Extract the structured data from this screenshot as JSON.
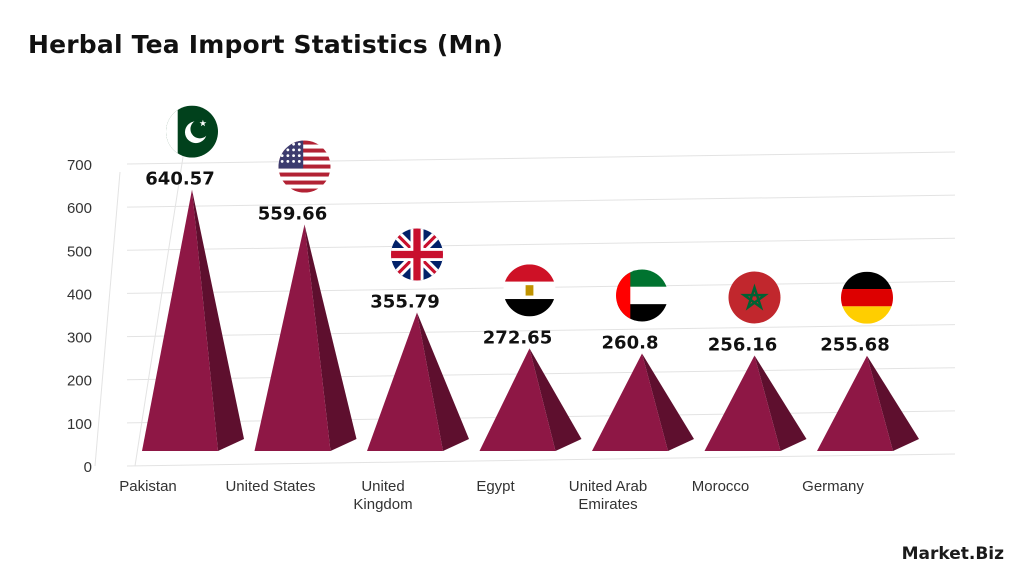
{
  "chart_data": {
    "type": "bar",
    "title": "Herbal Tea Import Statistics (Mn)",
    "xlabel": "",
    "ylabel": "",
    "ylim": [
      0,
      700
    ],
    "yticks": [
      0,
      100,
      200,
      300,
      400,
      500,
      600,
      700
    ],
    "grid": true,
    "categories": [
      {
        "label_lines": [
          "Pakistan"
        ],
        "flag": "pakistan-flag-icon"
      },
      {
        "label_lines": [
          "United States"
        ],
        "flag": "usa-flag-icon"
      },
      {
        "label_lines": [
          "United",
          "Kingdom"
        ],
        "flag": "uk-flag-icon"
      },
      {
        "label_lines": [
          "Egypt"
        ],
        "flag": "egypt-flag-icon"
      },
      {
        "label_lines": [
          "United Arab",
          "Emirates"
        ],
        "flag": "uae-flag-icon"
      },
      {
        "label_lines": [
          "Morocco"
        ],
        "flag": "morocco-flag-icon"
      },
      {
        "label_lines": [
          "Germany"
        ],
        "flag": "germany-flag-icon"
      }
    ],
    "values": [
      640.57,
      559.66,
      355.79,
      272.65,
      260.8,
      256.16,
      255.68
    ],
    "value_labels": [
      "640.57",
      "559.66",
      "355.79",
      "272.65",
      "260.8",
      "256.16",
      "255.68"
    ],
    "colors": {
      "bar_front": "#8e1745",
      "bar_side": "#5e0f2e",
      "grid": "#e3e3e3",
      "axis_text": "#333333"
    }
  },
  "brand": {
    "name": "Market.Biz"
  }
}
